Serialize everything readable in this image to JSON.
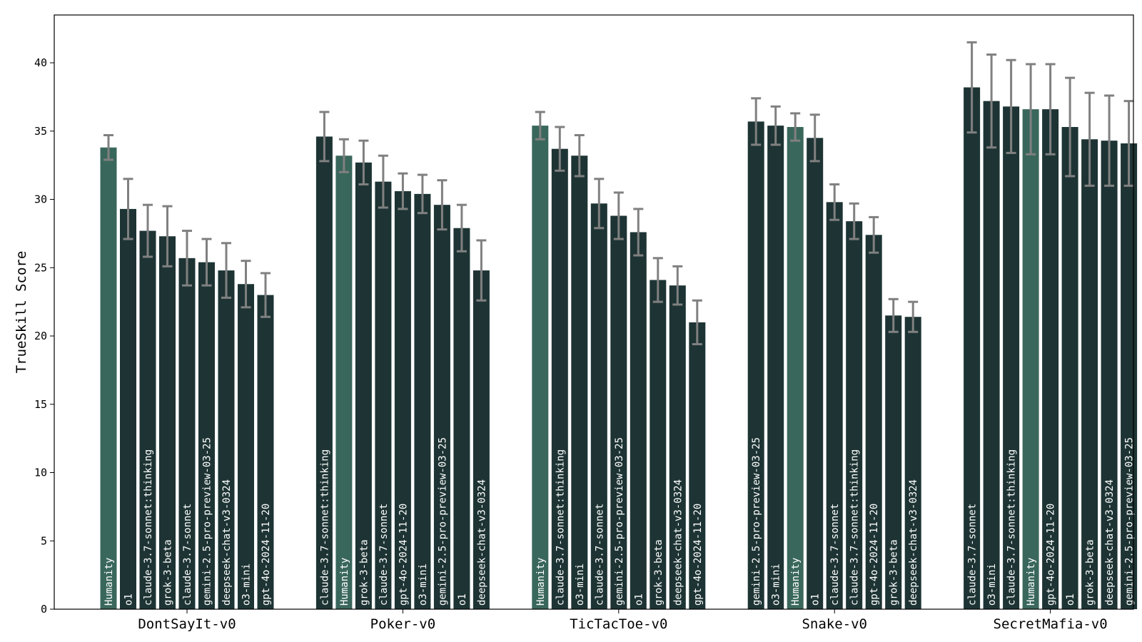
{
  "chart_data": {
    "type": "bar",
    "ylabel": "TrueSkill Score",
    "xlabel": "",
    "ylim": [
      0,
      43.5
    ],
    "yticks": [
      0,
      5,
      10,
      15,
      20,
      25,
      30,
      35,
      40
    ],
    "grid": false,
    "colors": {
      "bar": "#1e3434",
      "highlight": "#3a675c",
      "error": "#808080"
    },
    "highlight_model": "Humanity",
    "groups": [
      {
        "name": "DontSayIt-v0",
        "bars": [
          {
            "model": "Humanity",
            "value": 33.8,
            "err": 0.9
          },
          {
            "model": "o1",
            "value": 29.3,
            "err": 2.2
          },
          {
            "model": "claude-3.7-sonnet:thinking",
            "value": 27.7,
            "err": 1.9
          },
          {
            "model": "grok-3-beta",
            "value": 27.3,
            "err": 2.2
          },
          {
            "model": "claude-3.7-sonnet",
            "value": 25.7,
            "err": 2.0
          },
          {
            "model": "gemini-2.5-pro-preview-03-25",
            "value": 25.4,
            "err": 1.7
          },
          {
            "model": "deepseek-chat-v3-0324",
            "value": 24.8,
            "err": 2.0
          },
          {
            "model": "o3-mini",
            "value": 23.8,
            "err": 1.7
          },
          {
            "model": "gpt-4o-2024-11-20",
            "value": 23.0,
            "err": 1.6
          }
        ]
      },
      {
        "name": "Poker-v0",
        "bars": [
          {
            "model": "claude-3.7-sonnet:thinking",
            "value": 34.6,
            "err": 1.8
          },
          {
            "model": "Humanity",
            "value": 33.2,
            "err": 1.2
          },
          {
            "model": "grok-3-beta",
            "value": 32.7,
            "err": 1.6
          },
          {
            "model": "claude-3.7-sonnet",
            "value": 31.3,
            "err": 1.9
          },
          {
            "model": "gpt-4o-2024-11-20",
            "value": 30.6,
            "err": 1.3
          },
          {
            "model": "o3-mini",
            "value": 30.4,
            "err": 1.4
          },
          {
            "model": "gemini-2.5-pro-preview-03-25",
            "value": 29.6,
            "err": 1.8
          },
          {
            "model": "o1",
            "value": 27.9,
            "err": 1.7
          },
          {
            "model": "deepseek-chat-v3-0324",
            "value": 24.8,
            "err": 2.2
          }
        ]
      },
      {
        "name": "TicTacToe-v0",
        "bars": [
          {
            "model": "Humanity",
            "value": 35.4,
            "err": 1.0
          },
          {
            "model": "claude-3.7-sonnet:thinking",
            "value": 33.7,
            "err": 1.6
          },
          {
            "model": "o3-mini",
            "value": 33.2,
            "err": 1.5
          },
          {
            "model": "claude-3.7-sonnet",
            "value": 29.7,
            "err": 1.8
          },
          {
            "model": "gemini-2.5-pro-preview-03-25",
            "value": 28.8,
            "err": 1.7
          },
          {
            "model": "o1",
            "value": 27.6,
            "err": 1.7
          },
          {
            "model": "grok-3-beta",
            "value": 24.1,
            "err": 1.6
          },
          {
            "model": "deepseek-chat-v3-0324",
            "value": 23.7,
            "err": 1.4
          },
          {
            "model": "gpt-4o-2024-11-20",
            "value": 21.0,
            "err": 1.6
          }
        ]
      },
      {
        "name": "Snake-v0",
        "bars": [
          {
            "model": "gemini-2.5-pro-preview-03-25",
            "value": 35.7,
            "err": 1.7
          },
          {
            "model": "o3-mini",
            "value": 35.4,
            "err": 1.4
          },
          {
            "model": "Humanity",
            "value": 35.3,
            "err": 1.0
          },
          {
            "model": "o1",
            "value": 34.5,
            "err": 1.7
          },
          {
            "model": "claude-3.7-sonnet",
            "value": 29.8,
            "err": 1.3
          },
          {
            "model": "claude-3.7-sonnet:thinking",
            "value": 28.4,
            "err": 1.3
          },
          {
            "model": "gpt-4o-2024-11-20",
            "value": 27.4,
            "err": 1.3
          },
          {
            "model": "grok-3-beta",
            "value": 21.5,
            "err": 1.2
          },
          {
            "model": "deepseek-chat-v3-0324",
            "value": 21.4,
            "err": 1.1
          }
        ]
      },
      {
        "name": "SecretMafia-v0",
        "bars": [
          {
            "model": "claude-3.7-sonnet",
            "value": 38.2,
            "err": 3.3
          },
          {
            "model": "o3-mini",
            "value": 37.2,
            "err": 3.4
          },
          {
            "model": "claude-3.7-sonnet:thinking",
            "value": 36.8,
            "err": 3.4
          },
          {
            "model": "Humanity",
            "value": 36.6,
            "err": 3.3
          },
          {
            "model": "gpt-4o-2024-11-20",
            "value": 36.6,
            "err": 3.3
          },
          {
            "model": "o1",
            "value": 35.3,
            "err": 3.6
          },
          {
            "model": "grok-3-beta",
            "value": 34.4,
            "err": 3.4
          },
          {
            "model": "deepseek-chat-v3-0324",
            "value": 34.3,
            "err": 3.3
          },
          {
            "model": "gemini-2.5-pro-preview-03-25",
            "value": 34.1,
            "err": 3.1
          }
        ]
      }
    ]
  }
}
